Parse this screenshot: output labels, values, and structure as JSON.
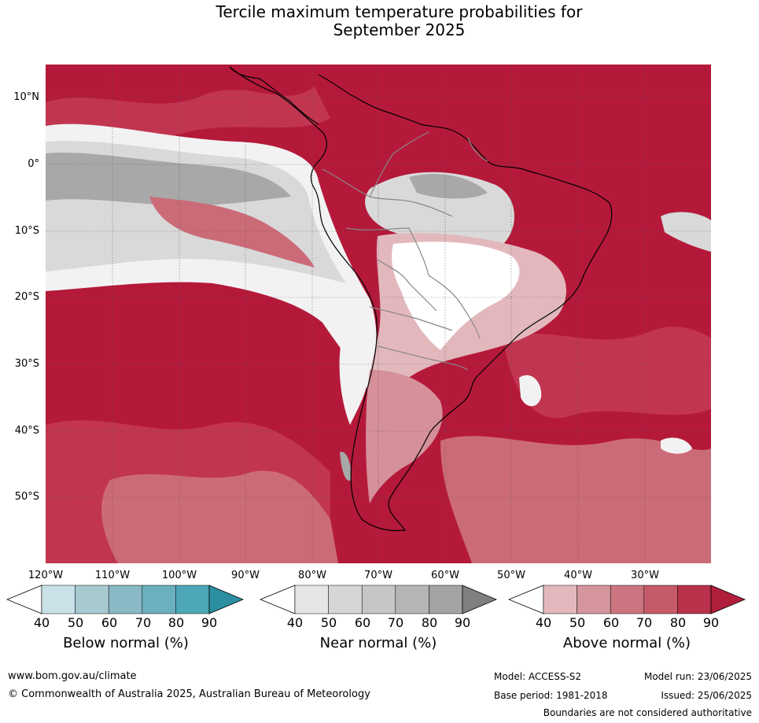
{
  "title": {
    "line1": "Tercile maximum temperature probabilities for",
    "line2": "September 2025"
  },
  "map": {
    "lat_labels": [
      "10°N",
      "0°",
      "10°S",
      "20°S",
      "30°S",
      "40°S",
      "50°S"
    ],
    "lon_labels": [
      "120°W",
      "110°W",
      "100°W",
      "90°W",
      "80°W",
      "70°W",
      "60°W",
      "50°W",
      "40°W",
      "30°W"
    ],
    "colors": {
      "above_90": "#b5193a",
      "above_80": "#c23550",
      "above_70": "#cc6b78",
      "above_60": "#d5909a",
      "above_50": "#e2b8bd",
      "near_40": "#f2f2f2",
      "near_50": "#d9d9d9",
      "near_60": "#c4c4c4",
      "near_70": "#a8a8a8",
      "white": "#ffffff"
    }
  },
  "colorbars": [
    {
      "label": "Below normal (%)",
      "ticks": [
        "40",
        "50",
        "60",
        "70",
        "80",
        "90"
      ],
      "colors": [
        "#ffffff",
        "#c9e1e7",
        "#a7c9d0",
        "#89b9c4",
        "#6bb0bf",
        "#4da7b6",
        "#2b8ea1"
      ]
    },
    {
      "label": "Near normal (%)",
      "ticks": [
        "40",
        "50",
        "60",
        "70",
        "80",
        "90"
      ],
      "colors": [
        "#ffffff",
        "#e5e5e5",
        "#d6d6d6",
        "#c6c6c6",
        "#b5b5b5",
        "#a3a3a3",
        "#808080"
      ]
    },
    {
      "label": "Above normal (%)",
      "ticks": [
        "40",
        "50",
        "60",
        "70",
        "80",
        "90"
      ],
      "colors": [
        "#ffffff",
        "#e2b8bd",
        "#d5959d",
        "#cc7580",
        "#c55a69",
        "#b9314b",
        "#b01e3c"
      ]
    }
  ],
  "footer": {
    "website": "www.bom.gov.au/climate",
    "copyright": "© Commonwealth of Australia 2025, Australian Bureau of Meteorology",
    "model": "Model: ACCESS-S2",
    "model_run": "Model run: 23/06/2025",
    "base_period": "Base period: 1981-2018",
    "issued": "Issued: 25/06/2025",
    "disclaimer": "Boundaries are not considered authoritative"
  }
}
